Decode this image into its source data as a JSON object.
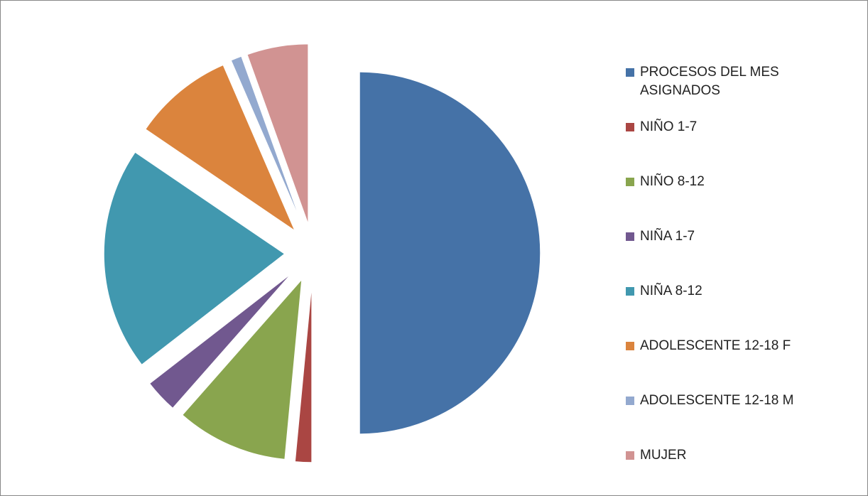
{
  "chart_data": {
    "type": "pie",
    "categories": [
      "PROCESOS DEL MES ASIGNADOS",
      "NIÑO  1-7",
      "NIÑO  8-12",
      "NIÑA  1-7",
      "NIÑA  8-12",
      "ADOLESCENTE 12-18 F",
      "ADOLESCENTE 12-18 M",
      "MUJER"
    ],
    "values": [
      50,
      1.5,
      10,
      3,
      20,
      9,
      1,
      5.5
    ],
    "colors": [
      "#4572a7",
      "#aa4643",
      "#89a54e",
      "#71588f",
      "#4198af",
      "#db843d",
      "#93a9cf",
      "#d19392"
    ],
    "legend": "right"
  }
}
